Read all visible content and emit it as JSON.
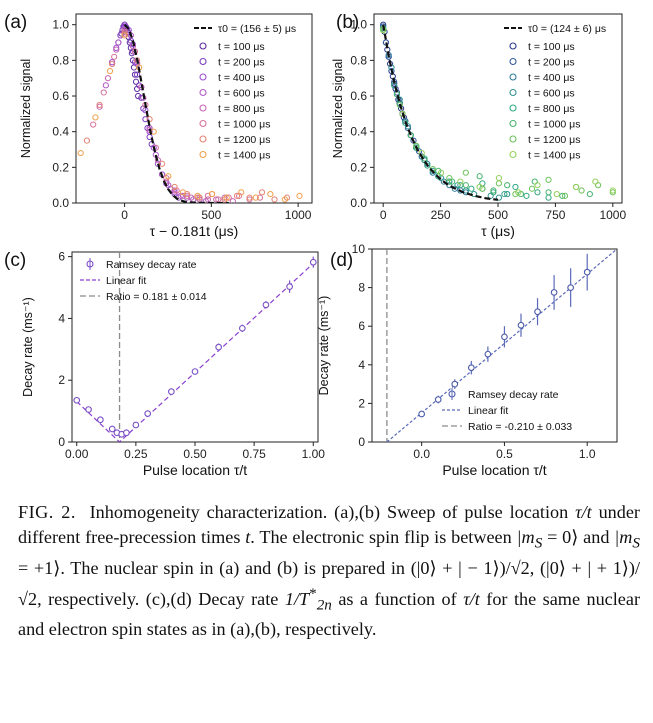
{
  "figure": {
    "caption": {
      "label": "FIG. 2.",
      "text": "Inhomogeneity characterization. (a),(b) Sweep of pulse location τ/t under different free-precession times t. The electronic spin flip is between |m_S = 0⟩ and |m_S = +1⟩. The nuclear spin in (a) and (b) is prepared in (|0⟩ + |−1⟩)/√2, (|0⟩ + |+1⟩)/√2, respectively. (c),(d) Decay rate 1/T*_2n as a function of τ/t for the same nuclear and electron spin states as in (a),(b), respectively.",
      "segments": [
        "Inhomogeneity characterization. (a),(b) Sweep of pulse location ",
        "τ/t",
        " under different free-precession times ",
        "t",
        ". The electronic spin flip is between ",
        "|m",
        "S",
        " = 0⟩",
        " and ",
        "|m",
        "S",
        " = +1⟩",
        ". The nuclear spin in (a) and (b) is prepared in ",
        "(|0⟩ + | − 1⟩)/√2",
        ", ",
        "(|0⟩ + | + 1⟩)/√2",
        ", respectively. (c),(d) Decay rate ",
        "1/T",
        "*",
        "2n",
        " as a function of ",
        "τ/t",
        " for the same nuclear and electron spin states as in (a),(b), respectively."
      ]
    },
    "colors": {
      "fit_black": "#111111",
      "fit_purple": "#8a3fd1",
      "ratio_gray": "#8c8c8c",
      "marker_c": "#7a4fc4",
      "marker_d": "#4a5aa8",
      "errorbar_d": "#5a6ab8"
    }
  },
  "chart_data": [
    {
      "panel": "(a)",
      "type": "scatter",
      "xlabel": "τ − 0.181t (μs)",
      "ylabel": "Normalized signal",
      "xlim": [
        -280,
        1080
      ],
      "ylim": [
        0,
        1.06
      ],
      "xticks": [
        0,
        500,
        1000
      ],
      "yticks": [
        0.0,
        0.2,
        0.4,
        0.6,
        0.8,
        1.0
      ],
      "legend_position": "top-right",
      "fit": {
        "label": "τ0 = (156 ± 5) μs",
        "style": "dashed",
        "color": "#111111",
        "x": [
          0,
          25,
          50,
          75,
          100,
          125,
          150,
          175,
          200,
          225,
          250,
          275,
          300,
          325,
          350,
          375,
          400,
          425,
          450,
          500,
          550,
          600
        ],
        "y": [
          1.0,
          0.975,
          0.903,
          0.794,
          0.663,
          0.526,
          0.397,
          0.285,
          0.195,
          0.127,
          0.079,
          0.047,
          0.026,
          0.014,
          0.007,
          0.004,
          0.002,
          0.001,
          0.001,
          0.0,
          0.0,
          0.0
        ]
      },
      "series": [
        {
          "name": "t = 100 μs",
          "color": "#5b2a9e",
          "x": [
            -18,
            -12,
            -6,
            0,
            6,
            12,
            18,
            24,
            30,
            36,
            42,
            48,
            54,
            60,
            66,
            72,
            78
          ],
          "y": [
            0.95,
            0.97,
            0.99,
            1.0,
            0.99,
            0.98,
            0.96,
            0.93,
            0.9,
            0.87,
            0.84,
            0.8,
            0.76,
            0.72,
            0.68,
            0.64,
            0.6
          ]
        },
        {
          "name": "t = 200 μs",
          "color": "#7a3bbf",
          "x": [
            -36,
            -24,
            -12,
            0,
            12,
            24,
            36,
            48,
            60,
            72,
            84,
            96,
            108,
            120,
            132,
            144,
            156
          ],
          "y": [
            0.9,
            0.94,
            0.97,
            0.99,
            0.98,
            0.95,
            0.91,
            0.85,
            0.79,
            0.72,
            0.66,
            0.59,
            0.53,
            0.47,
            0.42,
            0.37,
            0.33
          ]
        },
        {
          "name": "t = 400 μs",
          "color": "#9a4fd0",
          "x": [
            -72,
            -48,
            -24,
            0,
            24,
            48,
            72,
            96,
            120,
            144,
            168,
            192,
            216,
            240,
            264,
            288,
            312
          ],
          "y": [
            0.79,
            0.87,
            0.94,
            1.0,
            0.97,
            0.89,
            0.78,
            0.65,
            0.52,
            0.4,
            0.31,
            0.22,
            0.16,
            0.11,
            0.08,
            0.05,
            0.03
          ]
        },
        {
          "name": "t = 600 μs",
          "color": "#b05bc4",
          "x": [
            -108,
            -72,
            -36,
            0,
            36,
            72,
            108,
            144,
            180,
            216,
            252,
            288,
            324,
            360,
            396,
            432,
            468
          ],
          "y": [
            0.66,
            0.78,
            0.9,
            0.98,
            0.94,
            0.79,
            0.59,
            0.42,
            0.27,
            0.16,
            0.1,
            0.06,
            0.04,
            0.03,
            0.02,
            0.02,
            0.01
          ]
        },
        {
          "name": "t = 800 μs",
          "color": "#c565b2",
          "x": [
            -144,
            -96,
            -48,
            0,
            48,
            96,
            144,
            192,
            240,
            288,
            336,
            384,
            432,
            480,
            528,
            576,
            624
          ],
          "y": [
            0.54,
            0.7,
            0.86,
            0.97,
            0.88,
            0.65,
            0.41,
            0.24,
            0.12,
            0.07,
            0.04,
            0.03,
            0.03,
            0.02,
            0.02,
            0.03,
            0.01
          ]
        },
        {
          "name": "t = 1000 μs",
          "color": "#d7719a",
          "x": [
            -181,
            -120,
            -60,
            0,
            60,
            120,
            180,
            240,
            300,
            360,
            420,
            480,
            540,
            600,
            660,
            720,
            780
          ],
          "y": [
            0.44,
            0.62,
            0.82,
            0.96,
            0.85,
            0.55,
            0.31,
            0.14,
            0.07,
            0.04,
            0.03,
            0.04,
            0.02,
            0.03,
            0.04,
            0.02,
            0.03
          ]
        },
        {
          "name": "t = 1200 μs",
          "color": "#e58475",
          "x": [
            -217,
            -144,
            -72,
            0,
            72,
            144,
            216,
            288,
            360,
            432,
            504,
            576,
            648,
            720,
            792,
            864,
            936
          ],
          "y": [
            0.35,
            0.55,
            0.78,
            0.95,
            0.8,
            0.47,
            0.22,
            0.09,
            0.05,
            0.03,
            0.05,
            0.02,
            0.04,
            0.03,
            0.06,
            0.02,
            0.03
          ]
        },
        {
          "name": "t = 1400 μs",
          "color": "#f0a04a",
          "x": [
            -253,
            -168,
            -84,
            0,
            84,
            168,
            252,
            336,
            420,
            504,
            588,
            672,
            756,
            840,
            924,
            1008
          ],
          "y": [
            0.28,
            0.48,
            0.74,
            0.94,
            0.76,
            0.4,
            0.15,
            0.06,
            0.04,
            0.05,
            0.03,
            0.06,
            0.03,
            0.05,
            0.02,
            0.04
          ]
        }
      ]
    },
    {
      "panel": "(b)",
      "type": "scatter",
      "xlabel": "τ (μs)",
      "ylabel": "Normalized signal",
      "xlim": [
        -40,
        1040
      ],
      "ylim": [
        0,
        1.06
      ],
      "xticks": [
        0,
        250,
        500,
        750,
        1000
      ],
      "yticks": [
        0.0,
        0.2,
        0.4,
        0.6,
        0.8,
        1.0
      ],
      "legend_position": "top-right",
      "fit": {
        "label": "τ0 = (124 ± 6) μs",
        "style": "dashed",
        "color": "#111111",
        "x": [
          0,
          25,
          50,
          75,
          100,
          125,
          150,
          175,
          200,
          225,
          250,
          275,
          300,
          350,
          400,
          450,
          500
        ],
        "y": [
          1.0,
          0.818,
          0.668,
          0.546,
          0.446,
          0.365,
          0.298,
          0.244,
          0.199,
          0.163,
          0.133,
          0.109,
          0.089,
          0.059,
          0.04,
          0.026,
          0.018
        ]
      },
      "series": [
        {
          "name": "t = 100 μs",
          "color": "#2a3a8a",
          "x": [
            0,
            6,
            12,
            18,
            24,
            30,
            36,
            42,
            48,
            54,
            60,
            66,
            72,
            78,
            84,
            90
          ],
          "y": [
            1.0,
            0.96,
            0.9,
            0.86,
            0.82,
            0.78,
            0.74,
            0.71,
            0.67,
            0.64,
            0.61,
            0.58,
            0.56,
            0.53,
            0.5,
            0.48
          ]
        },
        {
          "name": "t = 200 μs",
          "color": "#345a9e",
          "x": [
            0,
            12,
            24,
            36,
            48,
            60,
            72,
            84,
            96,
            108,
            120,
            132,
            144,
            156,
            168,
            180
          ],
          "y": [
            0.99,
            0.9,
            0.82,
            0.74,
            0.68,
            0.62,
            0.56,
            0.5,
            0.46,
            0.42,
            0.38,
            0.35,
            0.31,
            0.29,
            0.26,
            0.24
          ]
        },
        {
          "name": "t = 400 μs",
          "color": "#2f7a9a",
          "x": [
            0,
            24,
            48,
            72,
            96,
            120,
            144,
            168,
            192,
            216,
            240,
            264,
            288,
            312,
            336,
            360
          ],
          "y": [
            0.98,
            0.83,
            0.66,
            0.56,
            0.46,
            0.38,
            0.31,
            0.26,
            0.22,
            0.17,
            0.15,
            0.12,
            0.1,
            0.08,
            0.07,
            0.06
          ]
        },
        {
          "name": "t = 600 μs",
          "color": "#2f9490",
          "x": [
            0,
            36,
            72,
            108,
            144,
            180,
            216,
            252,
            288,
            324,
            360,
            396,
            432,
            468,
            504,
            540
          ],
          "y": [
            0.98,
            0.76,
            0.58,
            0.43,
            0.32,
            0.24,
            0.18,
            0.14,
            0.12,
            0.1,
            0.07,
            0.05,
            0.08,
            0.04,
            0.03,
            0.05
          ]
        },
        {
          "name": "t = 800 μs",
          "color": "#34a884",
          "x": [
            0,
            48,
            96,
            144,
            192,
            240,
            288,
            336,
            384,
            432,
            480,
            528,
            576,
            624,
            672,
            720
          ],
          "y": [
            0.97,
            0.66,
            0.45,
            0.31,
            0.21,
            0.15,
            0.12,
            0.1,
            0.08,
            0.11,
            0.06,
            0.05,
            0.09,
            0.04,
            0.06,
            0.03
          ]
        },
        {
          "name": "t = 1000 μs",
          "color": "#45b46c",
          "x": [
            0,
            60,
            120,
            180,
            240,
            300,
            360,
            420,
            480,
            540,
            600,
            660,
            720,
            780,
            840,
            900
          ],
          "y": [
            0.98,
            0.61,
            0.38,
            0.25,
            0.18,
            0.12,
            0.1,
            0.15,
            0.07,
            0.1,
            0.05,
            0.12,
            0.06,
            0.04,
            0.09,
            0.05
          ]
        },
        {
          "name": "t = 1200 μs",
          "color": "#6cc25a",
          "x": [
            0,
            72,
            144,
            216,
            288,
            360,
            432,
            504,
            576,
            648,
            720,
            792,
            864,
            936,
            1000
          ],
          "y": [
            0.97,
            0.55,
            0.32,
            0.19,
            0.14,
            0.17,
            0.08,
            0.11,
            0.05,
            0.08,
            0.13,
            0.04,
            0.07,
            0.1,
            0.06
          ]
        },
        {
          "name": "t = 1400 μs",
          "color": "#94d05a",
          "x": [
            0,
            84,
            168,
            252,
            336,
            420,
            504,
            588,
            672,
            756,
            840,
            924,
            1000
          ],
          "y": [
            0.97,
            0.5,
            0.28,
            0.17,
            0.12,
            0.09,
            0.14,
            0.06,
            0.1,
            0.05,
            0.09,
            0.12,
            0.07
          ]
        }
      ]
    },
    {
      "panel": "(c)",
      "type": "line",
      "xlabel": "Pulse location τ/t",
      "ylabel": "Decay rate (ms⁻¹)",
      "xlim": [
        -0.02,
        1.02
      ],
      "ylim": [
        0,
        6.15
      ],
      "xticks": [
        0.0,
        0.25,
        0.5,
        0.75,
        1.0
      ],
      "xtick_labels": [
        "0.00",
        "0.25",
        "0.50",
        "0.75",
        "1.00"
      ],
      "yticks": [
        0,
        2,
        4,
        6
      ],
      "legend_position": "top-left",
      "series": [
        {
          "name": "Ramsey decay rate",
          "style": "markers-with-errorbars",
          "x": [
            0.0,
            0.05,
            0.1,
            0.15,
            0.17,
            0.19,
            0.21,
            0.25,
            0.3,
            0.4,
            0.5,
            0.6,
            0.7,
            0.8,
            0.9,
            1.0
          ],
          "y": [
            1.35,
            1.05,
            0.72,
            0.42,
            0.3,
            0.25,
            0.3,
            0.55,
            0.92,
            1.63,
            2.28,
            3.07,
            3.68,
            4.44,
            5.03,
            5.82
          ],
          "err": [
            0.05,
            0.05,
            0.05,
            0.05,
            0.05,
            0.05,
            0.05,
            0.06,
            0.06,
            0.07,
            0.08,
            0.12,
            0.12,
            0.12,
            0.2,
            0.18
          ]
        },
        {
          "name": "Linear fit",
          "style": "dashed",
          "x": [
            0.0,
            0.181,
            1.0
          ],
          "y": [
            1.31,
            0.0,
            5.78
          ]
        }
      ],
      "vline": {
        "name": "Ratio = 0.181 ± 0.014",
        "x": 0.181,
        "style": "dashed"
      }
    },
    {
      "panel": "(d)",
      "type": "line",
      "xlabel": "Pulse location τ/t",
      "ylabel": "Decay rate (ms⁻¹)",
      "xlim": [
        -0.3,
        1.18
      ],
      "ylim": [
        0,
        10
      ],
      "xticks": [
        0.0,
        0.5,
        1.0
      ],
      "xtick_labels": [
        "0.0",
        "0.5",
        "1.0"
      ],
      "yticks": [
        0,
        2,
        4,
        6,
        8,
        10
      ],
      "legend_position": "bottom-right",
      "series": [
        {
          "name": "Ramsey decay rate",
          "style": "markers-with-errorbars",
          "x": [
            0.0,
            0.1,
            0.2,
            0.3,
            0.4,
            0.5,
            0.6,
            0.7,
            0.8,
            0.9,
            1.0
          ],
          "y": [
            1.45,
            2.2,
            3.0,
            3.85,
            4.55,
            5.45,
            6.05,
            6.75,
            7.75,
            8.0,
            8.8
          ],
          "err": [
            0.15,
            0.2,
            0.25,
            0.35,
            0.4,
            0.55,
            0.6,
            0.7,
            0.9,
            1.0,
            0.95
          ]
        },
        {
          "name": "Linear fit",
          "style": "dotted",
          "x": [
            -0.21,
            1.18
          ],
          "y": [
            0.0,
            10.0
          ]
        }
      ],
      "vline": {
        "name": "Ratio = -0.210 ± 0.033",
        "x": -0.21,
        "style": "dashed"
      }
    }
  ]
}
